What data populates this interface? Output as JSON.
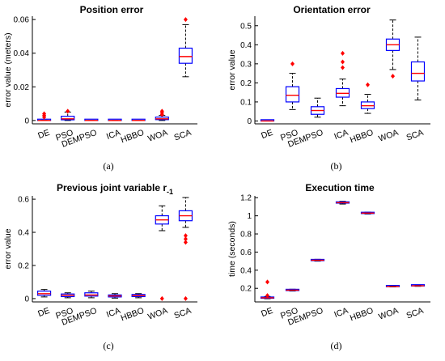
{
  "chart_data": [
    {
      "type": "box",
      "title": "Position error",
      "title_sub": "",
      "panel_label": "(a)",
      "xlabel": "",
      "ylabel": "error value (meters)",
      "ylim": [
        -0.002,
        0.062
      ],
      "yticks": [
        0,
        0.02,
        0.04,
        0.06
      ],
      "ytick_labels": [
        "0",
        "0.02",
        "0.04",
        "0.06"
      ],
      "categories": [
        "DE",
        "PSO",
        "DEMPSO",
        "ICA",
        "HBBO",
        "WOA",
        "SCA"
      ],
      "box_color": "#0000ff",
      "median_color": "#ff0000",
      "outlier_color": "#ff0000",
      "boxes": [
        {
          "min": 0,
          "q1": 0,
          "median": 0,
          "q3": 0.0001,
          "max": 0.0002,
          "outliers": [
            0.002,
            0.003,
            0.004
          ]
        },
        {
          "min": 0,
          "q1": 0.0004,
          "median": 0.001,
          "q3": 0.0025,
          "max": 0.005,
          "outliers": [
            0.0055
          ]
        },
        {
          "min": 0,
          "q1": 0,
          "median": 0,
          "q3": 0,
          "max": 0,
          "outliers": []
        },
        {
          "min": 0,
          "q1": 0,
          "median": 0,
          "q3": 0,
          "max": 0,
          "outliers": []
        },
        {
          "min": 0,
          "q1": 0,
          "median": 0,
          "q3": 0,
          "max": 0,
          "outliers": []
        },
        {
          "min": 0,
          "q1": 0.0005,
          "median": 0.001,
          "q3": 0.002,
          "max": 0.003,
          "outliers": [
            0.0035,
            0.0045,
            0.0055
          ]
        },
        {
          "min": 0.026,
          "q1": 0.034,
          "median": 0.038,
          "q3": 0.043,
          "max": 0.057,
          "outliers": [
            0.06
          ]
        }
      ]
    },
    {
      "type": "box",
      "title": "Orientation error",
      "title_sub": "",
      "panel_label": "(b)",
      "xlabel": "",
      "ylabel": "error value",
      "ylim": [
        -0.015,
        0.55
      ],
      "yticks": [
        0,
        0.1,
        0.2,
        0.3,
        0.4,
        0.5
      ],
      "ytick_labels": [
        "0",
        "0.1",
        "0.2",
        "0.3",
        "0.4",
        "0.5"
      ],
      "categories": [
        "DE",
        "PSO",
        "DEMPSO",
        "ICA",
        "HBBO",
        "WOA",
        "SCA"
      ],
      "box_color": "#0000ff",
      "median_color": "#ff0000",
      "outlier_color": "#ff0000",
      "boxes": [
        {
          "min": 0,
          "q1": 0,
          "median": 0,
          "q3": 0,
          "max": 0,
          "outliers": []
        },
        {
          "min": 0.06,
          "q1": 0.1,
          "median": 0.135,
          "q3": 0.18,
          "max": 0.25,
          "outliers": [
            0.3
          ]
        },
        {
          "min": 0.02,
          "q1": 0.035,
          "median": 0.055,
          "q3": 0.075,
          "max": 0.12,
          "outliers": []
        },
        {
          "min": 0.08,
          "q1": 0.125,
          "median": 0.145,
          "q3": 0.17,
          "max": 0.22,
          "outliers": [
            0.28,
            0.31,
            0.355
          ]
        },
        {
          "min": 0.04,
          "q1": 0.065,
          "median": 0.08,
          "q3": 0.1,
          "max": 0.14,
          "outliers": [
            0.19
          ]
        },
        {
          "min": 0.27,
          "q1": 0.37,
          "median": 0.4,
          "q3": 0.43,
          "max": 0.53,
          "outliers": [
            0.235
          ]
        },
        {
          "min": 0.11,
          "q1": 0.21,
          "median": 0.25,
          "q3": 0.31,
          "max": 0.44,
          "outliers": []
        }
      ]
    },
    {
      "type": "box",
      "title": "Previous joint variable r",
      "title_sub": "-1",
      "panel_label": "(c)",
      "xlabel": "",
      "ylabel": "error value",
      "ylim": [
        -0.02,
        0.62
      ],
      "yticks": [
        0,
        0.2,
        0.4,
        0.6
      ],
      "ytick_labels": [
        "0",
        "0.2",
        "0.4",
        "0.6"
      ],
      "categories": [
        "DE",
        "PSO",
        "DEMPSO",
        "ICA",
        "HBBO",
        "WOA",
        "SCA"
      ],
      "box_color": "#0000ff",
      "median_color": "#ff0000",
      "outlier_color": "#ff0000",
      "boxes": [
        {
          "min": 0.01,
          "q1": 0.02,
          "median": 0.03,
          "q3": 0.045,
          "max": 0.055,
          "outliers": []
        },
        {
          "min": 0.005,
          "q1": 0.012,
          "median": 0.02,
          "q3": 0.028,
          "max": 0.035,
          "outliers": []
        },
        {
          "min": 0.005,
          "q1": 0.015,
          "median": 0.022,
          "q3": 0.035,
          "max": 0.045,
          "outliers": []
        },
        {
          "min": 0.003,
          "q1": 0.01,
          "median": 0.016,
          "q3": 0.022,
          "max": 0.03,
          "outliers": []
        },
        {
          "min": 0.005,
          "q1": 0.012,
          "median": 0.018,
          "q3": 0.025,
          "max": 0.03,
          "outliers": []
        },
        {
          "min": 0.41,
          "q1": 0.45,
          "median": 0.475,
          "q3": 0.5,
          "max": 0.56,
          "outliers": [
            0
          ]
        },
        {
          "min": 0.43,
          "q1": 0.47,
          "median": 0.5,
          "q3": 0.53,
          "max": 0.61,
          "outliers": [
            0.34,
            0.36,
            0.38,
            0
          ]
        }
      ]
    },
    {
      "type": "box",
      "title": "Execution time",
      "title_sub": "",
      "panel_label": "(d)",
      "xlabel": "",
      "ylabel": "time (seconds)",
      "ylim": [
        0.05,
        1.22
      ],
      "yticks": [
        0.2,
        0.4,
        0.6,
        0.8,
        1,
        1.2
      ],
      "ytick_labels": [
        "0.2",
        "0.4",
        "0.6",
        "0.8",
        "1",
        "1.2"
      ],
      "categories": [
        "DE",
        "PSO",
        "DEMPSO",
        "ICA",
        "HBBO",
        "WOA",
        "SCA"
      ],
      "box_color": "#0000ff",
      "median_color": "#ff0000",
      "outlier_color": "#ff0000",
      "boxes": [
        {
          "min": 0.085,
          "q1": 0.09,
          "median": 0.095,
          "q3": 0.1,
          "max": 0.11,
          "outliers": [
            0.12,
            0.27
          ]
        },
        {
          "min": 0.17,
          "q1": 0.175,
          "median": 0.18,
          "q3": 0.185,
          "max": 0.19,
          "outliers": []
        },
        {
          "min": 0.5,
          "q1": 0.505,
          "median": 0.51,
          "q3": 0.515,
          "max": 0.52,
          "outliers": []
        },
        {
          "min": 1.13,
          "q1": 1.14,
          "median": 1.145,
          "q3": 1.15,
          "max": 1.16,
          "outliers": []
        },
        {
          "min": 1.02,
          "q1": 1.025,
          "median": 1.03,
          "q3": 1.035,
          "max": 1.04,
          "outliers": []
        },
        {
          "min": 0.215,
          "q1": 0.218,
          "median": 0.22,
          "q3": 0.222,
          "max": 0.225,
          "outliers": []
        },
        {
          "min": 0.222,
          "q1": 0.226,
          "median": 0.228,
          "q3": 0.23,
          "max": 0.235,
          "outliers": []
        }
      ]
    }
  ]
}
